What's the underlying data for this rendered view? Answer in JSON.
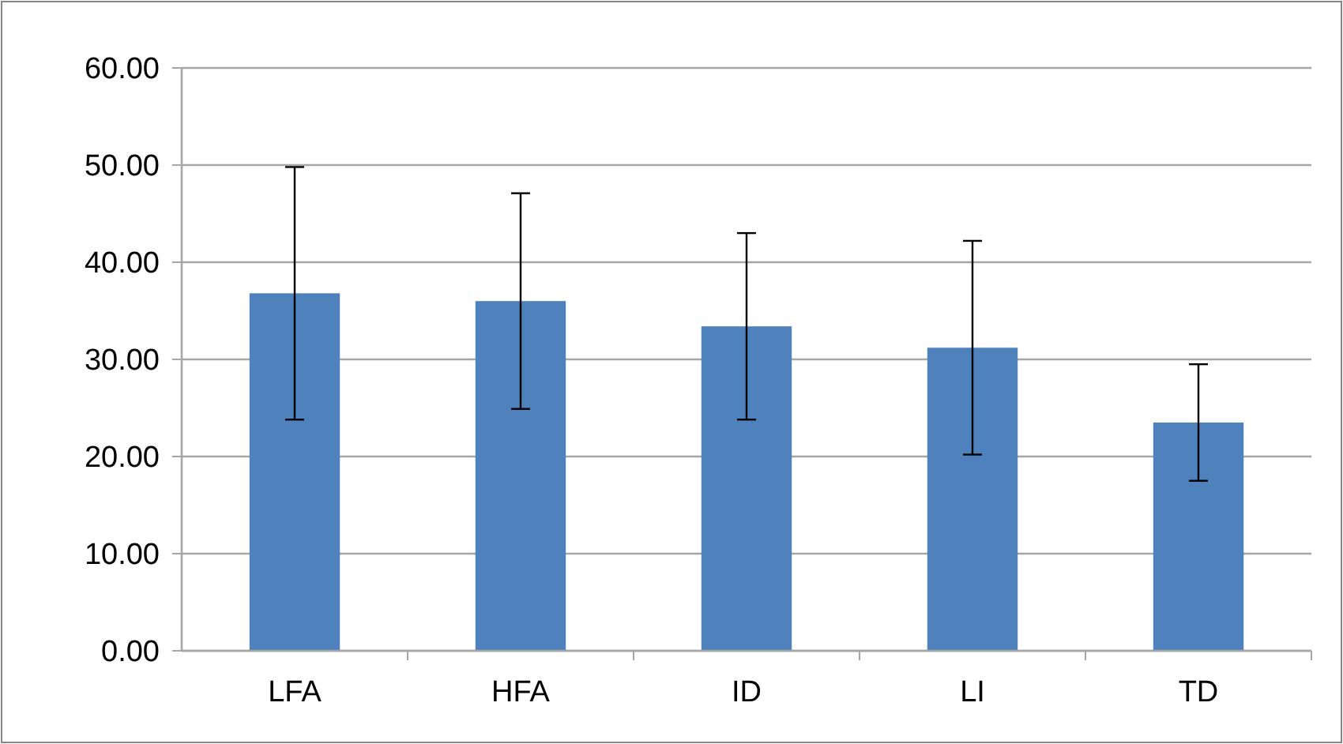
{
  "chart_data": {
    "type": "bar",
    "categories": [
      "LFA",
      "HFA",
      "ID",
      "LI",
      "TD"
    ],
    "values": [
      36.8,
      36.0,
      33.4,
      31.2,
      23.5
    ],
    "errors": [
      13,
      11.1,
      9.6,
      11,
      6
    ],
    "color": "#4f81bd",
    "ylim": [
      0,
      60
    ],
    "yticks": [
      {
        "value": 0,
        "label": "0.00"
      },
      {
        "value": 10,
        "label": "10.00"
      },
      {
        "value": 20,
        "label": "20.00"
      },
      {
        "value": 30,
        "label": "30.00"
      },
      {
        "value": 40,
        "label": "40.00"
      },
      {
        "value": 50,
        "label": "50.00"
      },
      {
        "value": 60,
        "label": "60.00"
      }
    ],
    "grid": "y"
  }
}
